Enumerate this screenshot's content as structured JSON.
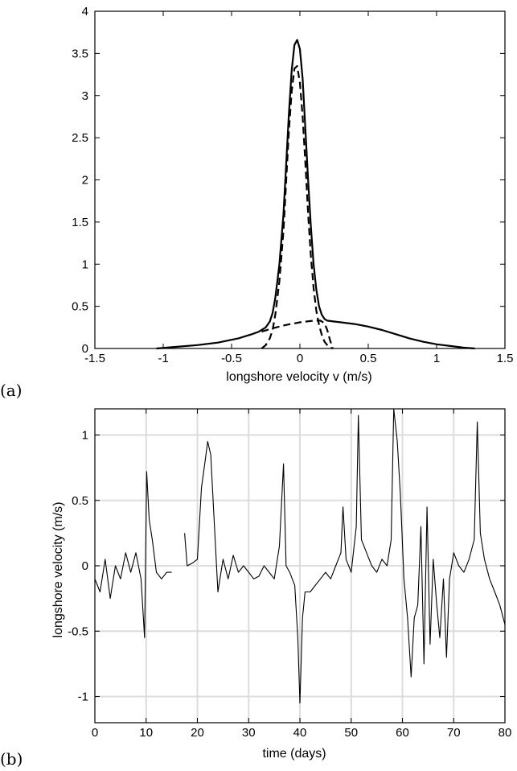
{
  "chart_data": [
    {
      "panel_label": "(a)",
      "type": "line",
      "xlabel": "longshore velocity v (m/s)",
      "ylabel": "",
      "xlim": [
        -1.5,
        1.5
      ],
      "ylim": [
        0,
        4
      ],
      "grid": false,
      "xticks": [
        "-1.5",
        "-1",
        "-0.5",
        "0",
        "0.5",
        "1",
        "1.5"
      ],
      "yticks": [
        "0",
        "0.5",
        "1",
        "1.5",
        "2",
        "2.5",
        "3",
        "3.5",
        "4"
      ],
      "series": [
        {
          "style": "solid",
          "x": [
            -1.05,
            -0.9,
            -0.75,
            -0.6,
            -0.45,
            -0.35,
            -0.3,
            -0.25,
            -0.22,
            -0.2,
            -0.18,
            -0.15,
            -0.12,
            -0.1,
            -0.08,
            -0.06,
            -0.04,
            -0.02,
            0.0,
            0.02,
            0.04,
            0.06,
            0.08,
            0.1,
            0.12,
            0.14,
            0.16,
            0.18,
            0.2,
            0.25,
            0.3,
            0.4,
            0.5,
            0.6,
            0.7,
            0.8,
            0.9,
            1.0,
            1.1,
            1.2,
            1.28
          ],
          "y": [
            0.0,
            0.02,
            0.04,
            0.07,
            0.12,
            0.17,
            0.2,
            0.25,
            0.32,
            0.42,
            0.6,
            1.0,
            1.6,
            2.2,
            2.8,
            3.3,
            3.6,
            3.66,
            3.55,
            3.2,
            2.6,
            2.0,
            1.45,
            1.0,
            0.7,
            0.5,
            0.4,
            0.35,
            0.33,
            0.32,
            0.31,
            0.29,
            0.26,
            0.22,
            0.17,
            0.12,
            0.08,
            0.05,
            0.03,
            0.01,
            0.0
          ]
        },
        {
          "style": "dashed",
          "x": [
            -0.28,
            -0.25,
            -0.22,
            -0.2,
            -0.18,
            -0.15,
            -0.12,
            -0.1,
            -0.08,
            -0.06,
            -0.04,
            -0.02,
            0.0,
            0.02,
            0.04,
            0.06,
            0.08,
            0.1,
            0.12,
            0.14,
            0.16,
            0.18,
            0.2,
            0.22,
            0.24
          ],
          "y": [
            0.0,
            0.04,
            0.12,
            0.22,
            0.4,
            0.8,
            1.4,
            2.0,
            2.6,
            3.05,
            3.32,
            3.35,
            3.15,
            2.75,
            2.2,
            1.6,
            1.1,
            0.72,
            0.45,
            0.28,
            0.16,
            0.08,
            0.04,
            0.01,
            0.0
          ]
        },
        {
          "style": "dashed",
          "x": [
            -0.28,
            -0.2,
            -0.1,
            0.0,
            0.1,
            0.15,
            0.18,
            0.2,
            0.22,
            0.24
          ],
          "y": [
            0.2,
            0.24,
            0.28,
            0.31,
            0.33,
            0.33,
            0.3,
            0.22,
            0.1,
            0.0
          ]
        }
      ]
    },
    {
      "panel_label": "(b)",
      "type": "line",
      "xlabel": "time (days)",
      "ylabel": "longshore velocity (m/s)",
      "xlim": [
        0,
        80
      ],
      "ylim": [
        -1.2,
        1.2
      ],
      "grid": true,
      "xticks": [
        "0",
        "10",
        "20",
        "30",
        "40",
        "50",
        "60",
        "70",
        "80"
      ],
      "yticks": [
        "-1",
        "-0.5",
        "0",
        "0.5",
        "1"
      ],
      "series": [
        {
          "style": "solid",
          "segments": [
            {
              "x": [
                0,
                1,
                2,
                3,
                4,
                5,
                6,
                7,
                8,
                9,
                9.7,
                10.1,
                10.6,
                11.2,
                12,
                13,
                14,
                15
              ],
              "y": [
                -0.1,
                -0.2,
                0.05,
                -0.25,
                0.0,
                -0.1,
                0.1,
                -0.05,
                0.1,
                -0.1,
                -0.55,
                0.72,
                0.35,
                0.2,
                -0.05,
                -0.1,
                -0.05,
                -0.05
              ]
            },
            {
              "x": [
                17.5,
                18,
                19,
                20,
                20.8,
                21.5,
                22,
                22.6,
                23.2,
                24,
                25,
                26,
                27,
                28,
                29,
                30,
                31,
                32,
                33,
                34,
                35,
                36,
                36.8,
                37.3,
                38,
                39,
                39.6,
                40,
                40.5,
                41,
                42,
                43,
                44,
                45,
                46,
                47,
                48,
                48.4,
                49,
                50,
                51,
                51.4,
                52,
                53,
                54,
                55,
                56,
                57,
                57.8,
                58.3,
                59,
                59.6,
                60.3,
                61,
                61.7,
                62.3,
                63,
                63.6,
                64.2,
                64.8,
                65.4,
                66,
                66.7,
                67.3,
                68,
                68.6,
                69.2,
                70,
                71,
                72,
                73,
                74,
                74.6,
                75.2,
                76,
                77,
                78,
                79,
                80
              ],
              "y": [
                0.25,
                0.0,
                0.02,
                0.05,
                0.6,
                0.8,
                0.95,
                0.85,
                0.4,
                -0.2,
                0.05,
                -0.1,
                0.08,
                -0.05,
                0.0,
                -0.05,
                -0.1,
                -0.08,
                0.0,
                -0.05,
                -0.1,
                0.15,
                0.78,
                0.0,
                -0.05,
                -0.15,
                -0.55,
                -1.05,
                -0.4,
                -0.2,
                -0.2,
                -0.15,
                -0.1,
                -0.05,
                -0.1,
                0.0,
                0.1,
                0.45,
                0.05,
                -0.05,
                0.3,
                1.15,
                0.2,
                0.1,
                0.0,
                -0.05,
                0.05,
                0.0,
                0.2,
                1.2,
                0.95,
                0.55,
                -0.1,
                -0.4,
                -0.85,
                -0.4,
                -0.3,
                0.3,
                -0.75,
                0.45,
                -0.6,
                0.05,
                -0.3,
                -0.55,
                -0.1,
                -0.7,
                -0.1,
                0.1,
                0.0,
                -0.05,
                0.05,
                0.2,
                1.1,
                0.25,
                0.05,
                -0.1,
                -0.2,
                -0.3,
                -0.45
              ]
            }
          ]
        }
      ]
    }
  ]
}
